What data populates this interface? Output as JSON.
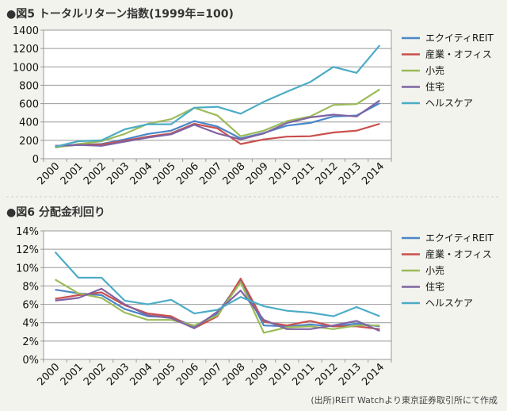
{
  "colors": {
    "エクイティREIT": "#4a86c8",
    "産業・オフィス": "#c9504d",
    "小売": "#9bbb59",
    "住宅": "#8064a2",
    "ヘルスケア": "#4bacc6"
  },
  "source": "(出所)REIT Watchより東京証券取引所にて作成",
  "chart_data": [
    {
      "type": "line",
      "title": "●図5 トータルリターン指数(1999年=100)",
      "categories": [
        "2000",
        "2001",
        "2002",
        "2003",
        "2004",
        "2005",
        "2006",
        "2007",
        "2008",
        "2009",
        "2010",
        "2011",
        "2012",
        "2013",
        "2014"
      ],
      "ylim": [
        0,
        1400
      ],
      "yticks": [
        0,
        200,
        400,
        600,
        800,
        1000,
        1200,
        1400
      ],
      "ytick_labels": [
        "0",
        "200",
        "400",
        "600",
        "800",
        "1000",
        "1200",
        "1400"
      ],
      "grid": true,
      "legend": "right",
      "series": [
        {
          "name": "エクイティREIT",
          "values": [
            130,
            150,
            160,
            210,
            270,
            305,
            410,
            350,
            220,
            280,
            360,
            390,
            460,
            470,
            605
          ]
        },
        {
          "name": "産業・オフィス",
          "values": [
            140,
            150,
            155,
            195,
            240,
            275,
            380,
            330,
            160,
            210,
            240,
            245,
            285,
            305,
            380
          ]
        },
        {
          "name": "小売",
          "values": [
            120,
            160,
            190,
            270,
            380,
            430,
            555,
            470,
            245,
            305,
            410,
            460,
            585,
            595,
            755
          ]
        },
        {
          "name": "住宅",
          "values": [
            140,
            150,
            140,
            185,
            230,
            265,
            370,
            275,
            210,
            275,
            390,
            450,
            480,
            460,
            635
          ]
        },
        {
          "name": "ヘルスケア",
          "values": [
            130,
            190,
            200,
            320,
            375,
            375,
            555,
            565,
            490,
            620,
            730,
            835,
            1000,
            935,
            1235
          ]
        }
      ]
    },
    {
      "type": "line",
      "title": "●図6 分配金利回り",
      "categories": [
        "2000",
        "2001",
        "2002",
        "2003",
        "2004",
        "2005",
        "2006",
        "2007",
        "2008",
        "2009",
        "2010",
        "2011",
        "2012",
        "2013",
        "2014"
      ],
      "ylim": [
        0,
        14
      ],
      "yticks": [
        0,
        2,
        4,
        6,
        8,
        10,
        12,
        14
      ],
      "ytick_labels": [
        "0%",
        "2%",
        "4%",
        "6%",
        "8%",
        "10%",
        "12%",
        "14%"
      ],
      "grid": true,
      "legend": "right",
      "series": [
        {
          "name": "エクイティREIT",
          "values": [
            7.6,
            7.2,
            7.0,
            5.5,
            4.7,
            4.6,
            3.6,
            5.0,
            8.6,
            3.7,
            3.6,
            3.8,
            3.6,
            3.9,
            3.6
          ]
        },
        {
          "name": "産業・オフィス",
          "values": [
            6.6,
            7.0,
            7.3,
            5.9,
            5.0,
            4.7,
            3.4,
            4.7,
            8.8,
            4.1,
            3.7,
            4.2,
            3.6,
            3.6,
            3.3
          ]
        },
        {
          "name": "小売",
          "values": [
            8.7,
            7.2,
            6.7,
            5.1,
            4.3,
            4.3,
            3.7,
            4.8,
            8.4,
            2.9,
            3.5,
            3.6,
            3.3,
            3.7,
            3.7
          ]
        },
        {
          "name": "住宅",
          "values": [
            6.4,
            6.7,
            7.7,
            6.0,
            4.8,
            4.5,
            3.4,
            5.2,
            7.5,
            4.3,
            3.3,
            3.3,
            3.7,
            4.2,
            3.1
          ]
        },
        {
          "name": "ヘルスケア",
          "values": [
            11.7,
            8.9,
            8.9,
            6.4,
            6.0,
            6.5,
            5.0,
            5.4,
            6.8,
            5.8,
            5.3,
            5.1,
            4.7,
            5.7,
            4.7
          ]
        }
      ]
    }
  ]
}
